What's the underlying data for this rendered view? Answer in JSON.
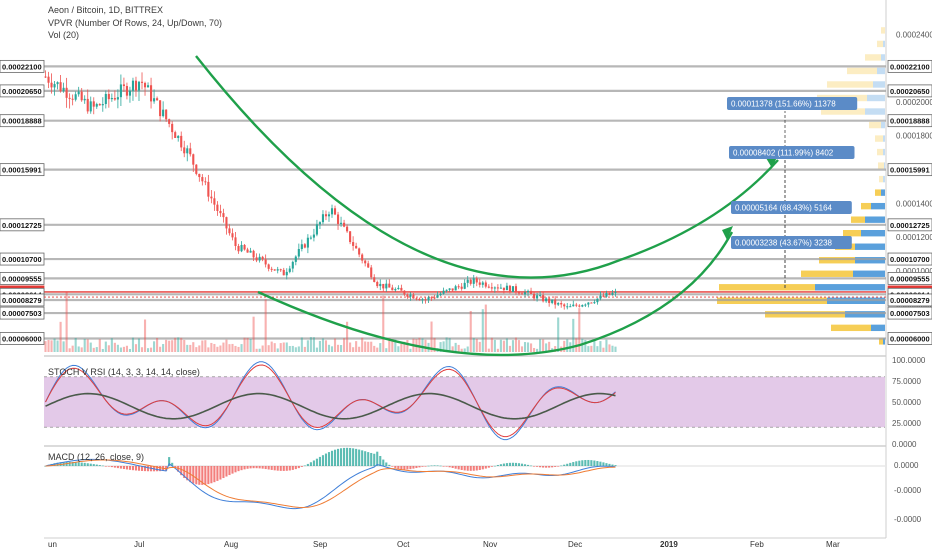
{
  "header": {
    "symbol": "Aeon / Bitcoin, 1D, BITTREX",
    "vpvr": "VPVR (Number Of Rows, 24, Up/Down, 70)",
    "vol": "Vol (20)"
  },
  "panels": {
    "stoch_label": "STOCH V RSI (14, 3, 3, 14, 14, close)",
    "macd_label": "MACD (12, 26, close, 9)"
  },
  "x_axis": {
    "labels": [
      "un",
      "Jul",
      "Aug",
      "Sep",
      "Oct",
      "Nov",
      "Dec",
      "2019",
      "Feb",
      "Mar"
    ]
  },
  "price_axis": {
    "ticks": [
      "0.00024000",
      "0.00022000",
      "0.00020000",
      "0.00018000",
      "0.00016000",
      "0.00014000",
      "0.00012000",
      "0.00010000",
      "0.00008000",
      "0.00006000"
    ],
    "levels": [
      {
        "label": "0.00022100",
        "value": 0.000221
      },
      {
        "label": "0.00020650",
        "value": 0.0002065
      },
      {
        "label": "0.00018888",
        "value": 0.00018888
      },
      {
        "label": "0.00015991",
        "value": 0.00015991
      },
      {
        "label": "0.00012725",
        "value": 0.00012725
      },
      {
        "label": "0.00010700",
        "value": 0.000107
      },
      {
        "label": "0.00009555",
        "value": 9.555e-05
      },
      {
        "label": "0.00008754",
        "value": 8.754e-05,
        "current": true
      },
      {
        "label": "0.00008614",
        "value": 8.614e-05
      },
      {
        "label": "0.00008279",
        "value": 8.279e-05
      },
      {
        "label": "0.00007503",
        "value": 7.503e-05
      },
      {
        "label": "0.00006000",
        "value": 6e-05
      }
    ]
  },
  "stoch_axis": {
    "ticks": [
      "100.0000",
      "75.0000",
      "50.0000",
      "25.0000",
      "0.0000"
    ]
  },
  "macd_axis": {
    "ticks": [
      "0.0000",
      "-0.0000",
      "-0.0000"
    ]
  },
  "annotations": [
    {
      "text": "0.00011378 (151.66%) 11378",
      "target": 0.0002
    },
    {
      "text": "0.00008402 (111.99%) 8402",
      "target": 0.00016
    },
    {
      "text": "0.00005164 (68.43%) 5164",
      "target": 0.00013
    },
    {
      "text": "0.00003238 (43.67%) 3238",
      "target": 0.00011
    }
  ],
  "colors": {
    "up": "#26a69a",
    "down": "#ef5350",
    "level_line": "#a0a0a0",
    "current": "#e53935",
    "pattern": "#1fa04a",
    "label_bg": "#ffffff",
    "annotation_bg": "#5b8bc7",
    "stoch_band": "#e3c9e8",
    "vpvr_up": "#f5c538",
    "vpvr_down": "#3d8fd6"
  },
  "chart_data": {
    "type": "candlestick",
    "title": "Aeon / Bitcoin, 1D, BITTREX",
    "price_range": [
      5.2e-05,
      0.000252
    ],
    "close_path": [
      {
        "month": "Jun",
        "close": 0.000215
      },
      {
        "month": "Jul",
        "close": 0.000196
      },
      {
        "month": "Jul",
        "close": 0.000213
      },
      {
        "month": "Aug",
        "close": 0.00017
      },
      {
        "month": "Aug",
        "close": 0.000115
      },
      {
        "month": "Sep",
        "close": 9.8e-05
      },
      {
        "month": "Sep",
        "close": 0.000137
      },
      {
        "month": "Oct",
        "close": 9.2e-05
      },
      {
        "month": "Oct",
        "close": 8.3e-05
      },
      {
        "month": "Nov",
        "close": 9.4e-05
      },
      {
        "month": "Nov",
        "close": 8.8e-05
      },
      {
        "month": "Dec",
        "close": 7.8e-05
      },
      {
        "month": "Dec",
        "close": 8.7e-05
      }
    ],
    "last_close": 8.754e-05,
    "stoch_rsi": {
      "range": [
        0,
        100
      ],
      "upper_band": 80,
      "lower_band": 20
    },
    "macd": {
      "fast": 12,
      "slow": 26,
      "signal": 9
    }
  }
}
